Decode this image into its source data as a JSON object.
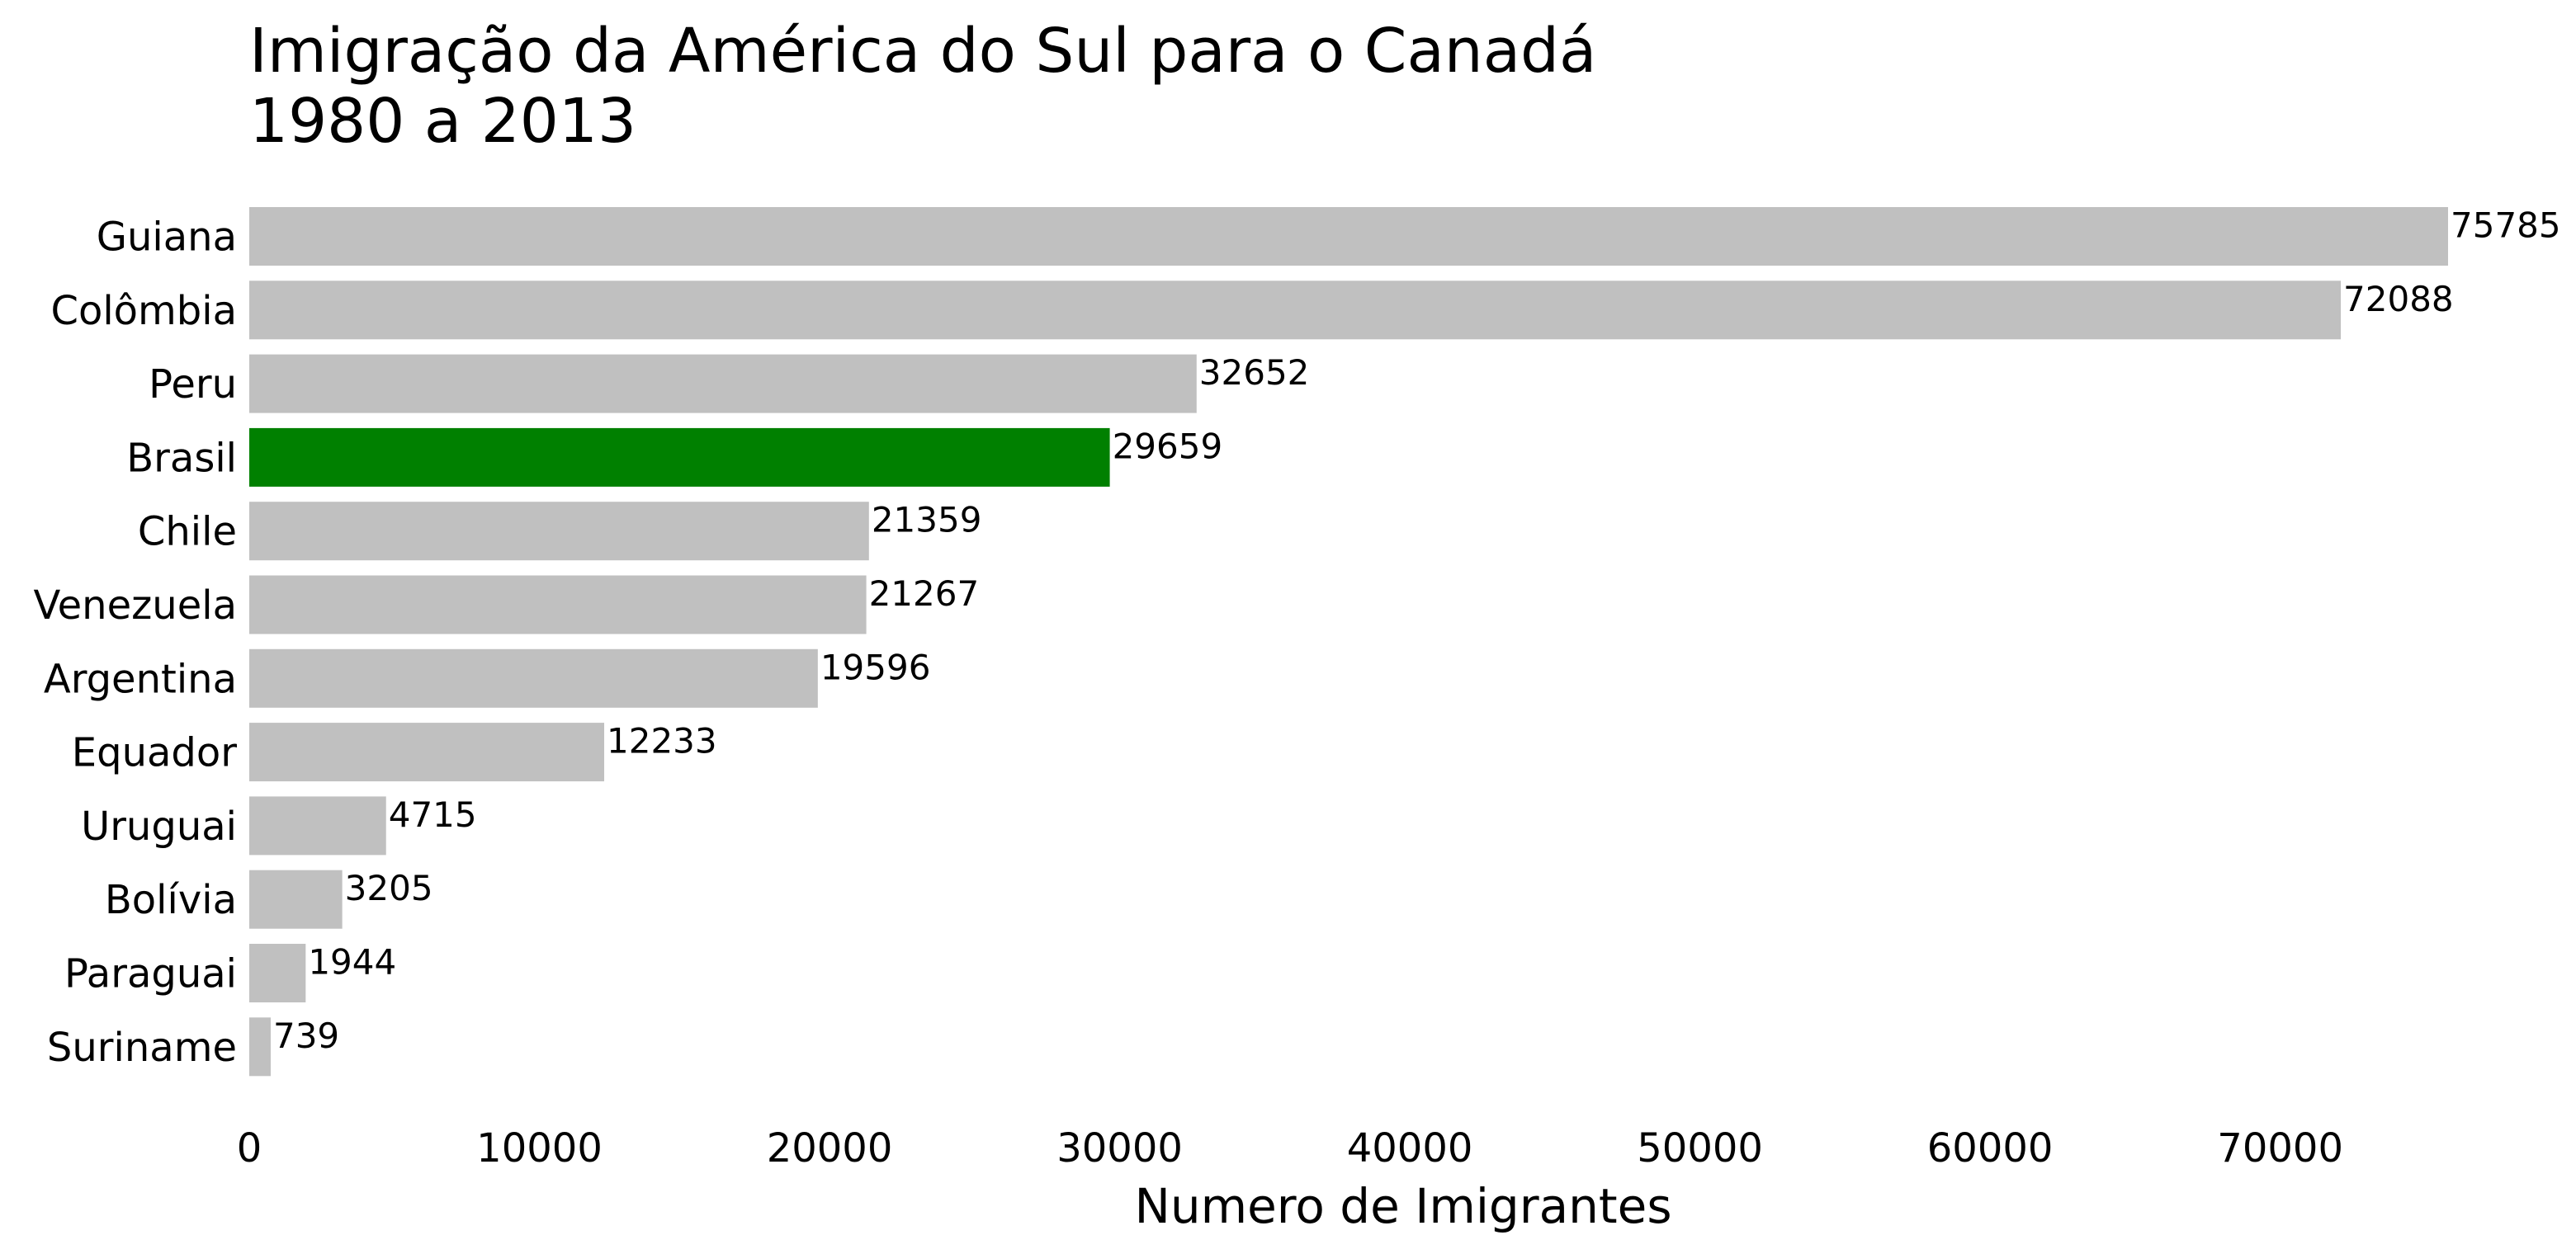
{
  "chart_data": {
    "type": "bar",
    "orientation": "horizontal",
    "title_lines": [
      "Imigração da América do Sul para o Canadá",
      "1980 a 2013"
    ],
    "xlabel": "Numero de Imigrantes",
    "ylabel": "",
    "xlim": [
      0,
      80000
    ],
    "xticks": [
      0,
      10000,
      20000,
      30000,
      40000,
      50000,
      60000,
      70000
    ],
    "categories": [
      "Guiana",
      "Colômbia",
      "Peru",
      "Brasil",
      "Chile",
      "Venezuela",
      "Argentina",
      "Equador",
      "Uruguai",
      "Bolívia",
      "Paraguai",
      "Suriname"
    ],
    "values": [
      75785,
      72088,
      32652,
      29659,
      21359,
      21267,
      19596,
      12233,
      4715,
      3205,
      1944,
      739
    ],
    "highlight": "Brasil",
    "colors": {
      "default_bar": "#c0c0c0",
      "highlight_bar": "#008000"
    },
    "grid": false,
    "legend": "none"
  }
}
